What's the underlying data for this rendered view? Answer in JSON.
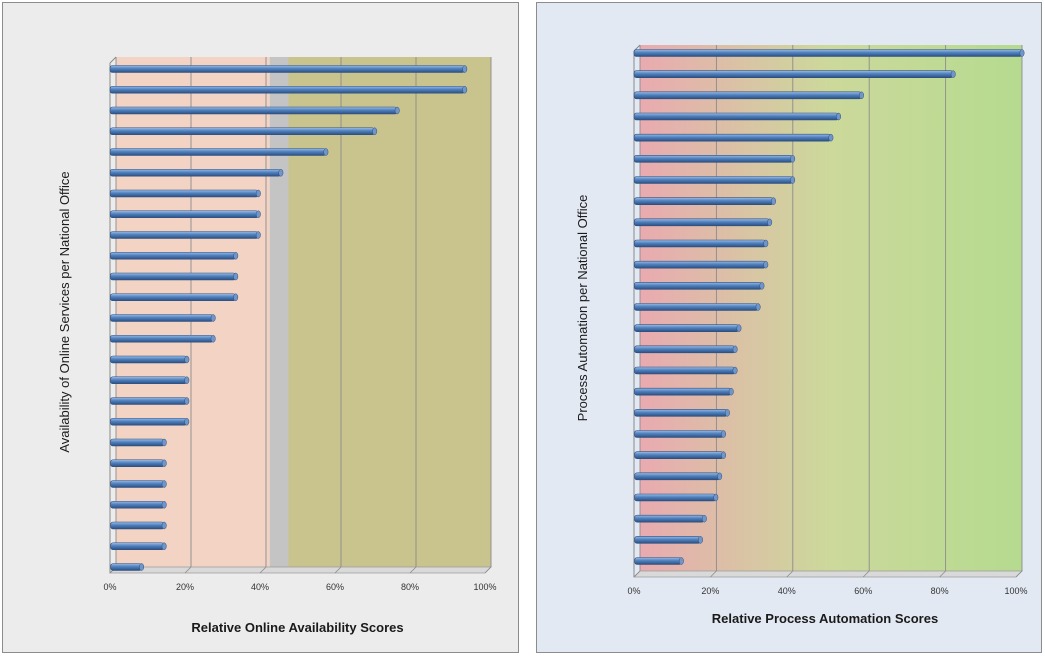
{
  "chart_data": [
    {
      "type": "bar",
      "orientation": "horizontal",
      "title": "",
      "xlabel": "Relative Online Availability Scores",
      "ylabel": "Availability of Online Services per National Office",
      "xlim": [
        0,
        100
      ],
      "xticks": [
        "0%",
        "20%",
        "40%",
        "60%",
        "80%",
        "100%"
      ],
      "bands": [
        {
          "from": 0,
          "to": 41,
          "color": "#f2d3c4"
        },
        {
          "from": 41,
          "to": 46,
          "color": "#c4c4c4"
        },
        {
          "from": 46,
          "to": 100,
          "color": "#c9c48d"
        }
      ],
      "grid": true,
      "bar_color": "#4f81bd",
      "values": [
        93,
        93,
        75,
        69,
        56,
        44,
        38,
        38,
        38,
        32,
        32,
        32,
        26,
        26,
        19,
        19,
        19,
        19,
        13,
        13,
        13,
        13,
        13,
        13,
        7
      ]
    },
    {
      "type": "bar",
      "orientation": "horizontal",
      "title": "",
      "xlabel": "Relative Process Automation Scores",
      "ylabel": "Process Automation per National Office",
      "xlim": [
        0,
        100
      ],
      "xticks": [
        "0%",
        "20%",
        "40%",
        "60%",
        "80%",
        "100%"
      ],
      "gradient": [
        "#e9aab0",
        "#ccd99b",
        "#b5da8f"
      ],
      "grid": true,
      "bar_color": "#4f81bd",
      "values": [
        100,
        82,
        58,
        52,
        50,
        40,
        40,
        35,
        34,
        33,
        33,
        32,
        31,
        26,
        25,
        25,
        24,
        23,
        22,
        22,
        21,
        20,
        17,
        16,
        11
      ]
    }
  ]
}
